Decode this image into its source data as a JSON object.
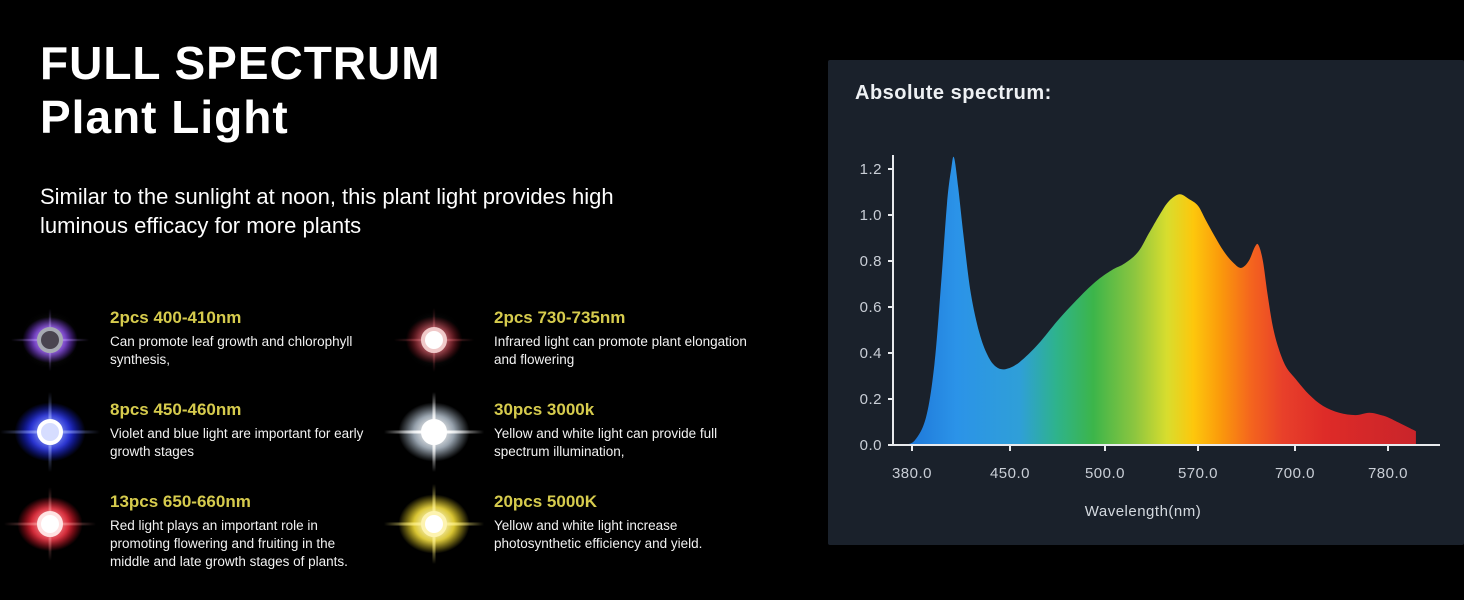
{
  "hero": {
    "title_line1": "FULL SPECTRUM",
    "title_line2": "Plant Light",
    "subtitle": "Similar to the sunlight at noon, this plant light provides high luminous efficacy for more plants"
  },
  "leds": {
    "items": [
      {
        "title": "2pcs 400-410nm",
        "desc": "Can promote leaf growth and chlorophyll synthesis,",
        "icon": {
          "name": "violet-led-glow-icon",
          "glow_inner": "#9d5cf0",
          "glow_outer": "#5b1fb8",
          "ray": "rgba(180,140,255,0.5)",
          "core": "#4a4550",
          "ring": "#a7abb3",
          "scale": 0.78
        }
      },
      {
        "title": "8pcs 450-460nm",
        "desc": "Violet and blue light are important for early growth stages",
        "icon": {
          "name": "blue-led-glow-icon",
          "glow_inner": "#4a6cff",
          "glow_outer": "#1722cc",
          "ray": "rgba(150,170,255,0.6)",
          "core": "#d6ddff",
          "ring": "#ffffff",
          "scale": 1
        }
      },
      {
        "title": "13pcs 650-660nm",
        "desc": "Red light plays an important role in promoting flowering and fruiting in the middle and late growth stages of plants.",
        "icon": {
          "name": "red-led-glow-icon",
          "glow_inner": "#ff5a5a",
          "glow_outer": "#cf1222",
          "ray": "rgba(255,150,150,0.5)",
          "core": "#ffffff",
          "ring": "#ffe3e3",
          "scale": 0.92
        }
      },
      {
        "title": "2pcs 730-735nm",
        "desc": "Infrared light can promote plant elongation and flowering",
        "icon": {
          "name": "deep-red-led-glow-icon",
          "glow_inner": "#c23040",
          "glow_outer": "#6e0a14",
          "ray": "rgba(220,90,100,0.45)",
          "core": "#ffffff",
          "ring": "#f0c9c9",
          "scale": 0.8
        }
      },
      {
        "title": "30pcs 3000k",
        "desc": "Yellow and white light can provide full spectrum illumination,",
        "icon": {
          "name": "white-led-glow-icon",
          "glow_inner": "#ffffff",
          "glow_outer": "#8e9aa6",
          "ray": "rgba(255,255,255,0.95)",
          "core": "#ffffff",
          "ring": "#ffffff",
          "scale": 1
        }
      },
      {
        "title": "20pcs 5000K",
        "desc": "Yellow and white light increase photosynthetic efficiency and yield.",
        "icon": {
          "name": "yellow-led-glow-icon",
          "glow_inner": "#fff9c0",
          "glow_outer": "#d8c224",
          "ray": "rgba(250,235,120,0.95)",
          "core": "#ffffff",
          "ring": "#fdf3b0",
          "scale": 1
        }
      }
    ]
  },
  "chart_data": {
    "type": "area",
    "title": "Absolute spectrum:",
    "xlabel": "Wavelength(nm)",
    "x_tick_labels": [
      "380.0",
      "450.0",
      "500.0",
      "570.0",
      "700.0",
      "780.0"
    ],
    "x_tick_values": [
      380,
      450,
      500,
      570,
      700,
      780
    ],
    "x_ticks_evenly_spaced": true,
    "y_tick_labels": [
      "0.0",
      "0.2",
      "0.4",
      "0.6",
      "0.8",
      "1.0",
      "1.2"
    ],
    "ylim": [
      0,
      1.3
    ],
    "grid": false,
    "legend": false,
    "series": [
      {
        "name": "absolute spectrum",
        "points": [
          [
            374,
            0
          ],
          [
            382,
            0.02
          ],
          [
            390,
            0.12
          ],
          [
            396,
            0.35
          ],
          [
            401,
            0.72
          ],
          [
            405,
            1.05
          ],
          [
            408,
            1.2
          ],
          [
            410,
            1.25
          ],
          [
            413,
            1.12
          ],
          [
            417,
            0.9
          ],
          [
            422,
            0.66
          ],
          [
            428,
            0.49
          ],
          [
            434,
            0.39
          ],
          [
            440,
            0.34
          ],
          [
            447,
            0.33
          ],
          [
            455,
            0.36
          ],
          [
            465,
            0.44
          ],
          [
            475,
            0.54
          ],
          [
            485,
            0.63
          ],
          [
            495,
            0.71
          ],
          [
            505,
            0.76
          ],
          [
            515,
            0.79
          ],
          [
            525,
            0.84
          ],
          [
            533,
            0.92
          ],
          [
            541,
            1
          ],
          [
            548,
            1.06
          ],
          [
            556,
            1.09
          ],
          [
            563,
            1.07
          ],
          [
            570,
            1.04
          ],
          [
            580,
            0.98
          ],
          [
            592,
            0.91
          ],
          [
            605,
            0.84
          ],
          [
            618,
            0.79
          ],
          [
            628,
            0.77
          ],
          [
            638,
            0.8
          ],
          [
            646,
            0.86
          ],
          [
            651,
            0.87
          ],
          [
            657,
            0.8
          ],
          [
            663,
            0.66
          ],
          [
            670,
            0.52
          ],
          [
            678,
            0.42
          ],
          [
            688,
            0.34
          ],
          [
            700,
            0.29
          ],
          [
            712,
            0.22
          ],
          [
            724,
            0.17
          ],
          [
            738,
            0.14
          ],
          [
            752,
            0.13
          ],
          [
            764,
            0.14
          ],
          [
            774,
            0.13
          ],
          [
            780,
            0.12
          ],
          [
            792,
            0.09
          ],
          [
            804,
            0.06
          ]
        ]
      }
    ],
    "gradient_stops": [
      [
        0,
        "#1a6fd4"
      ],
      [
        0.12,
        "#2b93e8"
      ],
      [
        0.24,
        "#2f9fd8"
      ],
      [
        0.31,
        "#2eb38c"
      ],
      [
        0.38,
        "#3cb54a"
      ],
      [
        0.46,
        "#8ec63f"
      ],
      [
        0.52,
        "#d8dd2e"
      ],
      [
        0.57,
        "#fdc70c"
      ],
      [
        0.62,
        "#fb9b0b"
      ],
      [
        0.68,
        "#f4641e"
      ],
      [
        0.74,
        "#e8402a"
      ],
      [
        0.82,
        "#de2b28"
      ],
      [
        1,
        "#c8242a"
      ]
    ]
  },
  "colors": {
    "accent_title": "#d6cb4d",
    "panel_bg": "#1a212b",
    "axis": "#e8eaed",
    "tick_label": "#c9ced6"
  }
}
